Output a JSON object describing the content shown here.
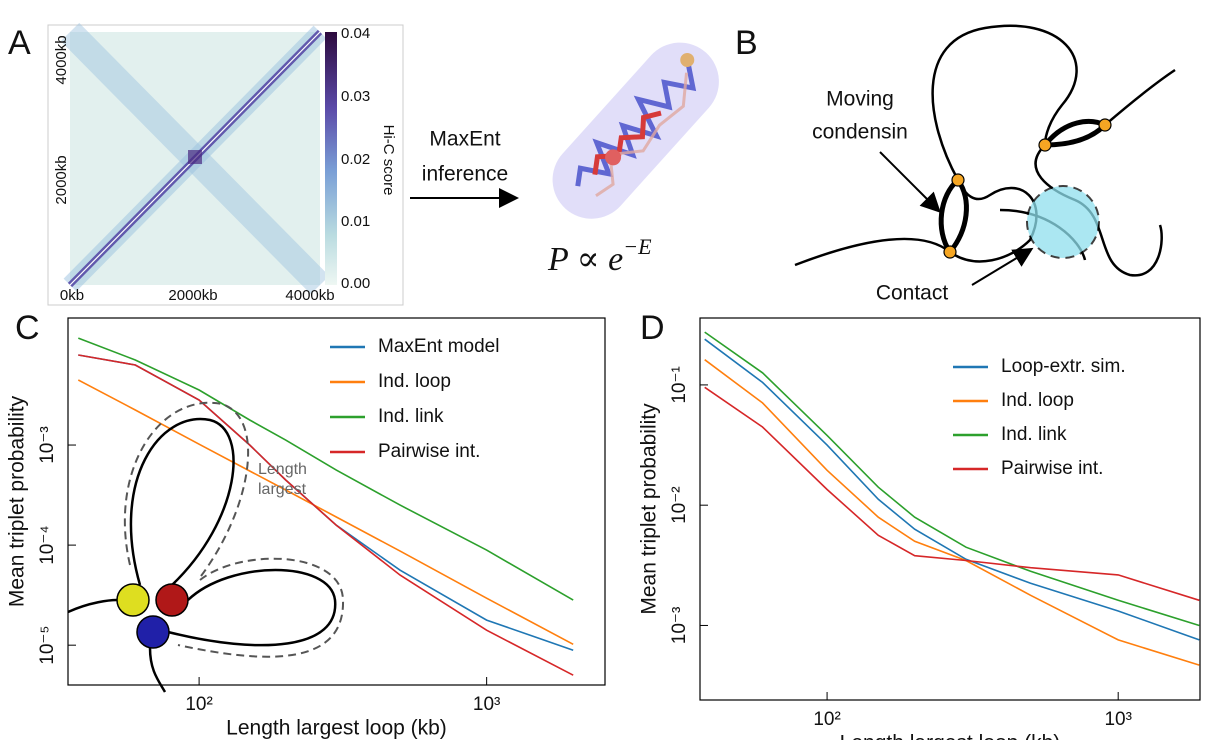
{
  "figure": {
    "panel_labels": [
      "A",
      "B",
      "C",
      "D"
    ],
    "heatmap": {
      "y_labels": [
        "4000kb",
        "2000kb"
      ],
      "x_labels": [
        "0kb",
        "2000kb",
        "4000kb"
      ],
      "colorbar_ticks": [
        "0.04",
        "0.03",
        "0.02",
        "0.01",
        "0.00"
      ],
      "colorbar_label": "Hi-C score"
    },
    "maxent": {
      "arrow_label": [
        "MaxEnt",
        "inference"
      ],
      "formula_base": "P ∝ e",
      "formula_exponent": "−E"
    },
    "cartoon": {
      "condensin_label": [
        "Moving",
        "condensin"
      ],
      "contact_label": "Contact"
    },
    "inset": {
      "label": [
        "Length",
        "largest"
      ]
    }
  },
  "chart_data": [
    {
      "type": "line",
      "x_label": "Length largest loop (kb)",
      "y_label": "Mean triplet probability",
      "log_x": true,
      "log_y": true,
      "legend": "upper right",
      "xlim": [
        35,
        2580
      ],
      "ylim": [
        4e-06,
        0.0186
      ],
      "xticks": [
        {
          "value": 100,
          "label": "10²"
        },
        {
          "value": 1000,
          "label": "10³"
        }
      ],
      "yticks": [
        {
          "value": 0.001,
          "label": "10⁻³"
        },
        {
          "value": 0.0001,
          "label": "10⁻⁴"
        },
        {
          "value": 1e-05,
          "label": "10⁻⁵"
        }
      ],
      "x": [
        38,
        60,
        100,
        150,
        200,
        300,
        500,
        1000,
        2000
      ],
      "series": [
        {
          "name": "MaxEnt model",
          "color": "#1f77b4",
          "values": [
            0.00794,
            0.00631,
            0.00282,
            0.001,
            0.000447,
            0.000158,
            5.62e-05,
            1.78e-05,
            8.91e-06
          ]
        },
        {
          "name": "Ind. loop",
          "color": "#ff7f0e",
          "values": [
            0.00447,
            0.00224,
            0.00102,
            0.00055,
            0.000355,
            0.000191,
            8.71e-05,
            2.95e-05,
            1.02e-05
          ]
        },
        {
          "name": "Ind. link",
          "color": "#2ca02c",
          "values": [
            0.0117,
            0.00708,
            0.00355,
            0.00178,
            0.00112,
            0.000562,
            0.000251,
            8.91e-05,
            2.82e-05
          ]
        },
        {
          "name": "Pairwise int.",
          "color": "#d62728",
          "values": [
            0.00794,
            0.00631,
            0.00282,
            0.001,
            0.000447,
            0.000158,
            5.01e-05,
            1.41e-05,
            5.01e-06
          ]
        }
      ]
    },
    {
      "type": "line",
      "x_label": "Length largest loop (kb)",
      "y_label": "Mean triplet probability",
      "log_x": true,
      "log_y": true,
      "legend": "upper right",
      "xlim": [
        36.6,
        1910
      ],
      "ylim": [
        0.00024,
        0.36
      ],
      "xticks": [
        {
          "value": 100,
          "label": "10²"
        },
        {
          "value": 1000,
          "label": "10³"
        }
      ],
      "yticks": [
        {
          "value": 0.1,
          "label": "10⁻¹"
        },
        {
          "value": 0.01,
          "label": "10⁻²"
        },
        {
          "value": 0.001,
          "label": "10⁻³"
        }
      ],
      "x": [
        38,
        60,
        100,
        150,
        200,
        300,
        500,
        1000,
        1900
      ],
      "series": [
        {
          "name": "Loop-extr. sim.",
          "color": "#1f77b4",
          "values": [
            0.24,
            0.105,
            0.0316,
            0.0112,
            0.00631,
            0.00355,
            0.00224,
            0.00132,
            0.000759
          ]
        },
        {
          "name": "Ind. loop",
          "color": "#ff7f0e",
          "values": [
            0.162,
            0.0708,
            0.0195,
            0.00794,
            0.00501,
            0.00347,
            0.00178,
            0.000759,
            0.000468
          ]
        },
        {
          "name": "Ind. link",
          "color": "#2ca02c",
          "values": [
            0.275,
            0.126,
            0.038,
            0.0141,
            0.00794,
            0.00447,
            0.00282,
            0.00162,
            0.001
          ]
        },
        {
          "name": "Pairwise int.",
          "color": "#d62728",
          "values": [
            0.0955,
            0.0447,
            0.0135,
            0.00562,
            0.0038,
            0.00347,
            0.00302,
            0.00263,
            0.00162
          ]
        }
      ]
    }
  ]
}
